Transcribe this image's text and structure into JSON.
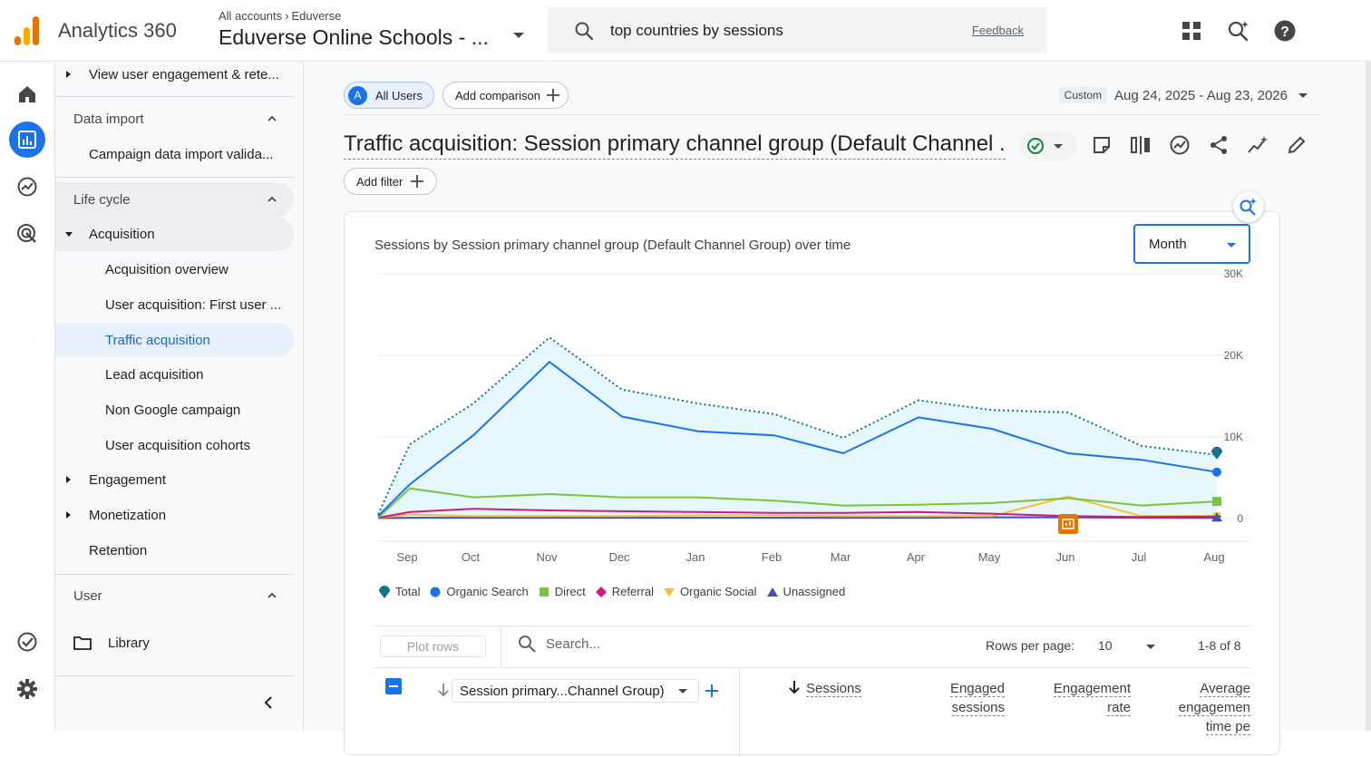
{
  "header": {
    "app_name": "Analytics 360",
    "breadcrumb_root": "All accounts",
    "breadcrumb_account": "Eduverse",
    "property_name": "Eduverse Online Schools - ...",
    "search_query": "top countries by sessions",
    "feedback_label": "Feedback",
    "icons": [
      "apps-grid-icon",
      "search-insights-icon",
      "help-icon"
    ]
  },
  "rail": {
    "items": [
      "home-icon",
      "reports-icon",
      "explore-icon",
      "advertising-icon"
    ],
    "bottom": [
      "admin-check-icon",
      "settings-icon"
    ]
  },
  "nav": {
    "top_item": "View user engagement & rete...",
    "data_import_header": "Data import",
    "data_import_item": "Campaign data import valida...",
    "lifecycle_header": "Life cycle",
    "acquisition": "Acquisition",
    "acquisition_items": [
      "Acquisition overview",
      "User acquisition: First user ...",
      "Traffic acquisition",
      "Lead acquisition",
      "Non Google campaign",
      "User acquisition cohorts"
    ],
    "engagement": "Engagement",
    "monetization": "Monetization",
    "retention": "Retention",
    "user_header": "User",
    "library": "Library"
  },
  "toolbar": {
    "segment_avatar": "A",
    "segment_label": "All Users",
    "add_comparison": "Add comparison",
    "date_custom": "Custom",
    "date_range": "Aug 24, 2025 - Aug 23, 2026",
    "report_title": "Traffic acquisition: Session primary channel group (Default Channel ...",
    "add_filter": "Add filter"
  },
  "chart_card": {
    "title": "Sessions by Session primary channel group (Default Channel Group) over time",
    "granularity": "Month"
  },
  "chart_data": {
    "type": "line",
    "title": "Sessions by Session primary channel group (Default Channel Group) over time",
    "categories": [
      "Sep",
      "Oct",
      "Nov",
      "Dec",
      "Jan",
      "Feb",
      "Mar",
      "Apr",
      "May",
      "Jun",
      "Jul",
      "Aug"
    ],
    "yticks": [
      "30K",
      "20K",
      "10K",
      "0"
    ],
    "ylim": [
      0,
      30000
    ],
    "y_axis_side": "right",
    "grid": true,
    "legend_position": "bottom-left",
    "series": [
      {
        "name": "Total",
        "color": "#12748a",
        "style": "dotted",
        "start": 500,
        "values": [
          9100,
          14100,
          22200,
          15800,
          14100,
          12800,
          9900,
          14500,
          13300,
          13000,
          8900,
          7800
        ]
      },
      {
        "name": "Organic Search",
        "color": "#1a73e8",
        "style": "solid",
        "start": 300,
        "values": [
          4200,
          10200,
          19200,
          12500,
          10700,
          10200,
          8000,
          12400,
          11000,
          8000,
          7200,
          5700
        ]
      },
      {
        "name": "Direct",
        "color": "#7cc243",
        "style": "solid",
        "start": 100,
        "values": [
          3700,
          2600,
          3000,
          2600,
          2600,
          2200,
          1600,
          1700,
          1900,
          2500,
          1600,
          2100
        ]
      },
      {
        "name": "Referral",
        "color": "#d01884",
        "style": "solid",
        "start": 100,
        "values": [
          800,
          1200,
          1000,
          900,
          800,
          700,
          700,
          800,
          600,
          300,
          200,
          250
        ]
      },
      {
        "name": "Organic Social",
        "color": "#f9c02e",
        "style": "solid",
        "start": 100,
        "values": [
          500,
          300,
          300,
          300,
          400,
          400,
          300,
          300,
          300,
          2700,
          300,
          300
        ]
      },
      {
        "name": "Unassigned",
        "color": "#3f51b5",
        "style": "solid",
        "start": 50,
        "values": [
          100,
          100,
          100,
          100,
          100,
          100,
          100,
          100,
          150,
          150,
          100,
          80
        ]
      }
    ],
    "annotation": {
      "x": "Jun",
      "icon": "annotation-icon"
    }
  },
  "table": {
    "plot_rows": "Plot rows",
    "search_placeholder": "Search...",
    "rows_per_page_label": "Rows per page:",
    "rows_per_page": "10",
    "range": "1-8 of 8",
    "dimension": "Session primary...Channel Group)",
    "col_sessions": "Sessions",
    "col_engaged_1": "Engaged",
    "col_engaged_2": "sessions",
    "col_rate_1": "Engagement",
    "col_rate_2": "rate",
    "col_avg_1": "Average",
    "col_avg_2": "engagemen",
    "col_avg_3": "time pe"
  }
}
